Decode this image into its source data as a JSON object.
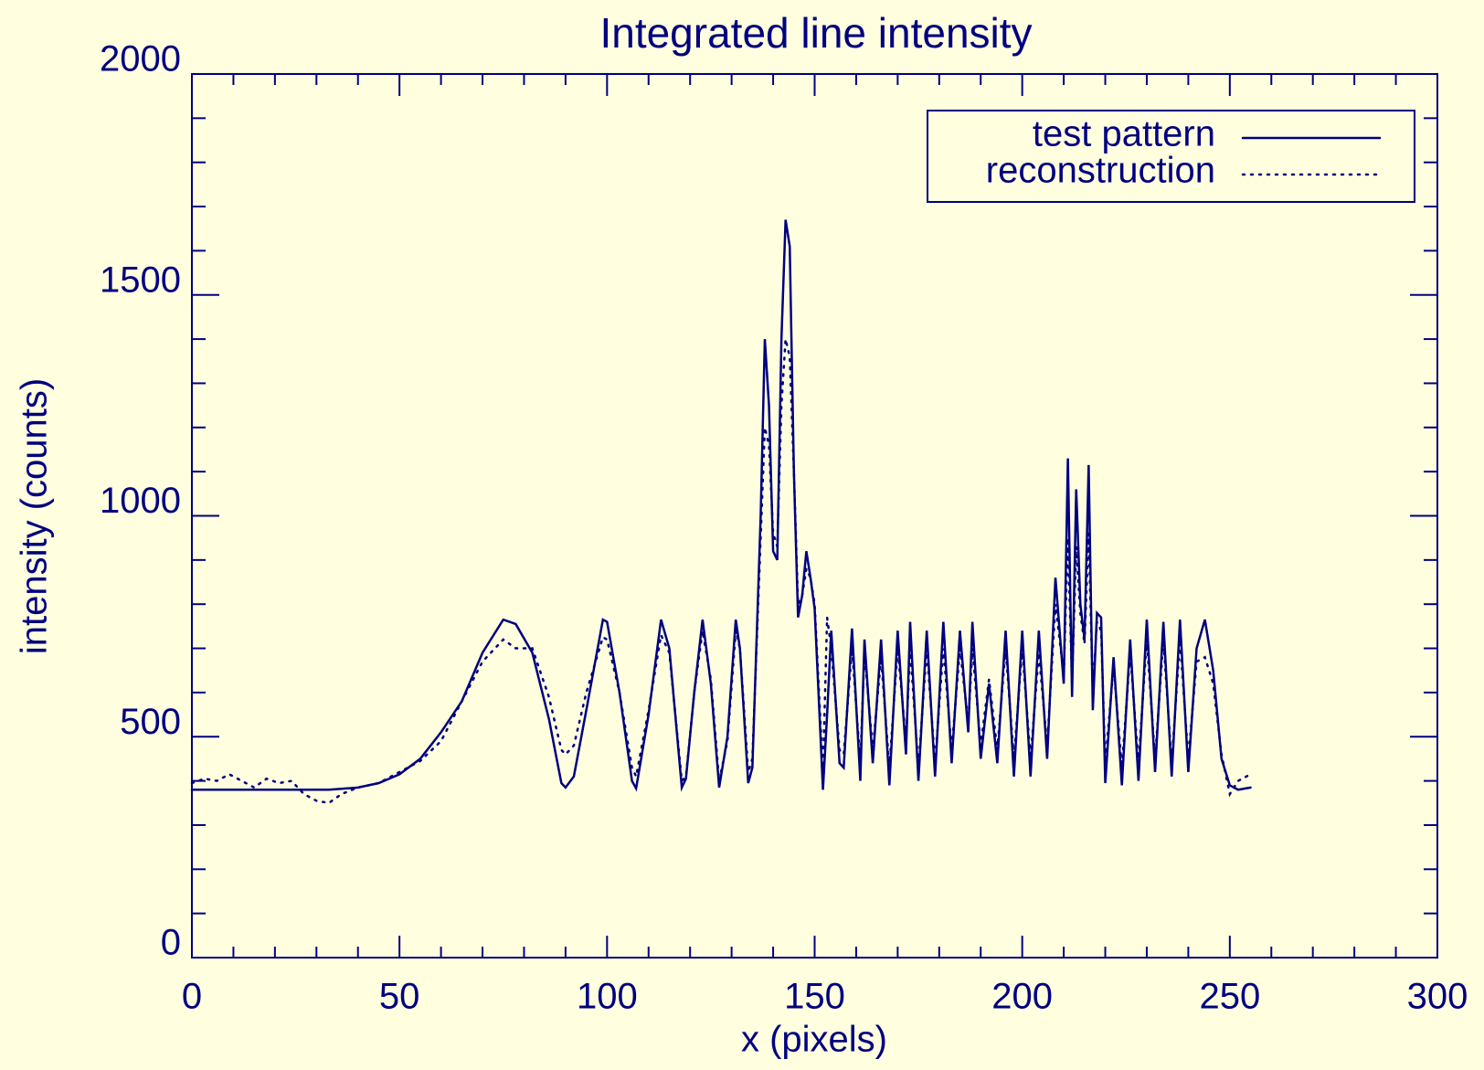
{
  "chart_data": {
    "type": "line",
    "title": "Integrated line intensity",
    "x_label": "x (pixels)",
    "y_label": "intensity (counts)",
    "xlim": [
      0,
      300
    ],
    "xticks": [
      0,
      50,
      100,
      150,
      200,
      250,
      300
    ],
    "ylim": [
      0,
      2000
    ],
    "yticks": [
      0,
      500,
      1000,
      1500,
      2000
    ],
    "legend": "upper right",
    "color": "#000080",
    "x": [
      0,
      3,
      6,
      9,
      12,
      15,
      18,
      21,
      24,
      27,
      30,
      33,
      36,
      40,
      45,
      50,
      55,
      60,
      65,
      70,
      75,
      78,
      82,
      86,
      89,
      90,
      92,
      95,
      99,
      100,
      103,
      106,
      107,
      110,
      113,
      115,
      118,
      119,
      121,
      123,
      125,
      127,
      129,
      131,
      132,
      134,
      135,
      137,
      138,
      139,
      140,
      141,
      142,
      143,
      144,
      145,
      146,
      147,
      148,
      149,
      150,
      152,
      153,
      154,
      156,
      157,
      159,
      161,
      162,
      164,
      166,
      168,
      170,
      172,
      173,
      175,
      177,
      179,
      181,
      183,
      185,
      187,
      188,
      190,
      192,
      194,
      196,
      198,
      200,
      202,
      204,
      206,
      208,
      210,
      211,
      212,
      213,
      214,
      215,
      216,
      217,
      218,
      219,
      220,
      222,
      224,
      226,
      228,
      230,
      232,
      234,
      236,
      238,
      240,
      242,
      244,
      246,
      248,
      250,
      252,
      255
    ],
    "series": [
      {
        "name": "test pattern",
        "color": "#000080",
        "style": "solid",
        "values": [
          380,
          380,
          380,
          380,
          380,
          380,
          380,
          380,
          380,
          380,
          380,
          380,
          382,
          385,
          395,
          415,
          450,
          510,
          580,
          690,
          765,
          755,
          690,
          540,
          395,
          385,
          410,
          560,
          765,
          760,
          600,
          400,
          383,
          550,
          765,
          700,
          385,
          405,
          600,
          765,
          620,
          385,
          500,
          765,
          700,
          395,
          430,
          1000,
          1400,
          1250,
          920,
          900,
          1400,
          1670,
          1610,
          1100,
          770,
          820,
          920,
          860,
          790,
          380,
          550,
          740,
          440,
          430,
          745,
          400,
          720,
          440,
          720,
          390,
          740,
          460,
          760,
          400,
          740,
          410,
          760,
          440,
          740,
          510,
          760,
          450,
          620,
          440,
          740,
          410,
          740,
          410,
          740,
          450,
          860,
          620,
          1130,
          590,
          1060,
          800,
          720,
          1115,
          560,
          780,
          770,
          395,
          680,
          390,
          720,
          400,
          765,
          420,
          760,
          410,
          765,
          420,
          700,
          765,
          650,
          450,
          390,
          380,
          385
        ]
      },
      {
        "name": "reconstruction",
        "color": "#000080",
        "style": "dotted",
        "values": [
          395,
          405,
          400,
          415,
          400,
          385,
          405,
          395,
          400,
          370,
          355,
          350,
          370,
          385,
          395,
          420,
          445,
          490,
          580,
          670,
          720,
          700,
          700,
          590,
          470,
          460,
          480,
          600,
          725,
          720,
          600,
          430,
          410,
          560,
          730,
          690,
          400,
          410,
          600,
          740,
          630,
          400,
          490,
          740,
          700,
          420,
          450,
          950,
          1200,
          1160,
          960,
          930,
          1250,
          1400,
          1360,
          1100,
          800,
          820,
          880,
          860,
          800,
          420,
          770,
          700,
          470,
          460,
          700,
          440,
          690,
          470,
          680,
          430,
          700,
          490,
          700,
          430,
          700,
          440,
          700,
          470,
          700,
          530,
          700,
          480,
          630,
          470,
          700,
          450,
          700,
          450,
          690,
          480,
          800,
          640,
          950,
          620,
          930,
          780,
          710,
          960,
          600,
          760,
          740,
          440,
          660,
          430,
          690,
          440,
          720,
          450,
          720,
          440,
          720,
          450,
          670,
          680,
          620,
          460,
          370,
          400,
          415
        ]
      }
    ]
  }
}
